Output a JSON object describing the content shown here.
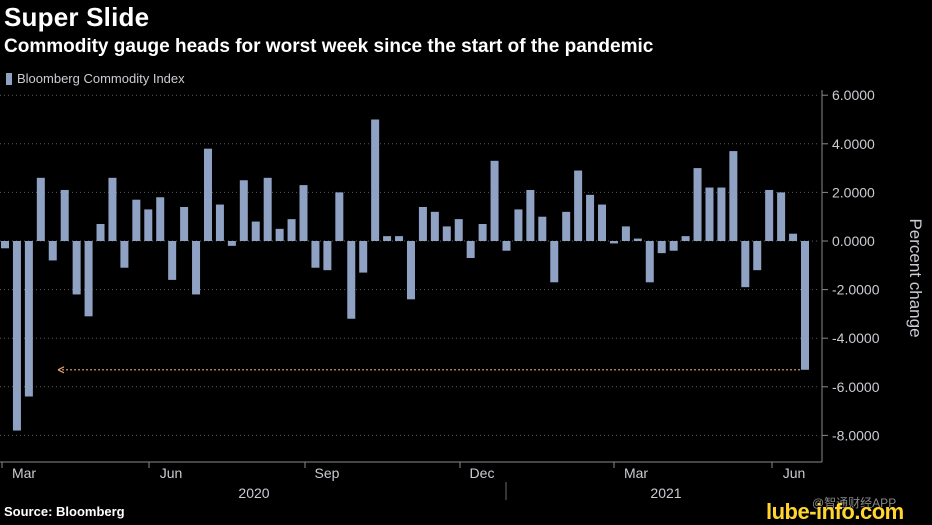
{
  "title": "Super Slide",
  "subtitle": "Commodity gauge heads for worst week since the start of the pandemic",
  "source": "Source: Bloomberg",
  "watermark": {
    "label": "@智通财经APP",
    "site": "lube-info.com"
  },
  "colors": {
    "bar": "#8fa2c4",
    "grid": "#5a5a5a",
    "arrow": "#e0a070",
    "text": "#c9ccd2"
  },
  "chart_data": {
    "type": "bar",
    "title": "Super Slide",
    "subtitle": "Commodity gauge heads for worst week since the start of the pandemic",
    "legend": [
      "Bloomberg Commodity Index"
    ],
    "legend_position": "top-left",
    "ylabel": "Percent change",
    "ylim": [
      -8.5,
      6.3
    ],
    "yticks": [
      "6.0000",
      "4.0000",
      "2.0000",
      "0.0000",
      "-2.0000",
      "-4.0000",
      "-6.0000",
      "-8.0000"
    ],
    "ytick_values": [
      6,
      4,
      2,
      0,
      -2,
      -4,
      -6,
      -8
    ],
    "xtick_labels": [
      "Mar",
      "Jun",
      "Sep",
      "Dec",
      "Mar",
      "Jun"
    ],
    "year_labels": [
      "2020",
      "2021"
    ],
    "series": [
      {
        "name": "Bloomberg Commodity Index",
        "values": [
          -0.3,
          -7.8,
          -6.4,
          2.6,
          -0.8,
          2.1,
          -2.2,
          -3.1,
          0.7,
          2.6,
          -1.1,
          1.7,
          1.3,
          1.8,
          -1.6,
          1.4,
          -2.2,
          3.8,
          1.5,
          -0.2,
          2.5,
          0.8,
          2.6,
          0.5,
          0.9,
          2.3,
          -1.1,
          -1.2,
          2.0,
          -3.2,
          -1.3,
          5.0,
          0.2,
          0.2,
          -2.4,
          1.4,
          1.2,
          0.6,
          0.9,
          -0.7,
          0.7,
          3.3,
          -0.4,
          1.3,
          2.1,
          1.0,
          -1.7,
          1.2,
          2.9,
          1.9,
          1.5,
          -0.1,
          0.6,
          0.1,
          -1.7,
          -0.5,
          -0.4,
          0.2,
          3.0,
          2.2,
          2.2,
          3.7,
          -1.9,
          -1.2,
          2.1,
          2.0,
          0.3,
          -5.3
        ]
      }
    ],
    "annotation": {
      "type": "dashed-arrow",
      "value": -5.3,
      "description": "worst week since start of pandemic"
    }
  }
}
